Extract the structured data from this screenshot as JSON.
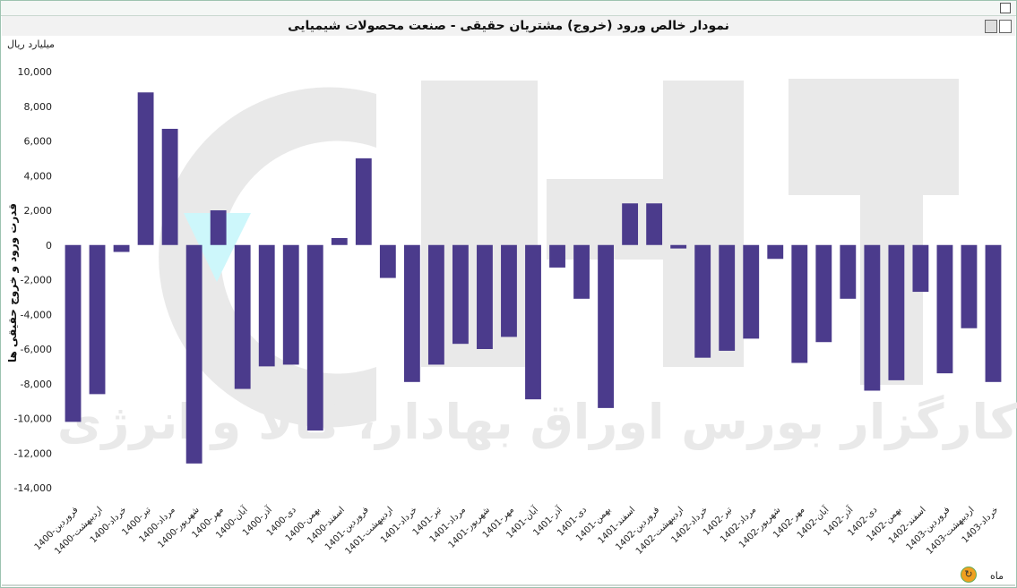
{
  "window": {
    "maximize_icon": "maximize-icon"
  },
  "toolbar": {
    "print_icon": "print-icon",
    "export_icon": "export-icon"
  },
  "footer": {
    "period_label": "ماه",
    "refresh_icon": "refresh-icon"
  },
  "watermark": {
    "text": "کارگزار بورس اوراق بهادار، کالا و انرژی"
  },
  "colors": {
    "bar": "#4b3b8c",
    "title_bg": "#f2f2f2",
    "watermark": "#e9e9e9",
    "highlight": "#cdf7fb"
  },
  "chart_data": {
    "type": "bar",
    "title": "نمودار خالص ورود (خروج) مشتریان حقیقی - صنعت محصولات شیمیایی",
    "unit_label": "میلیارد ریال",
    "ylabel": "قدرت ورود و خروج حقیقی ها",
    "xlabel": "",
    "ylim": [
      -14000,
      10000
    ],
    "yticks": [
      "10,000",
      "8,000",
      "6,000",
      "4,000",
      "2,000",
      "0",
      "-2,000",
      "-4,000",
      "-6,000",
      "-8,000",
      "-10,000",
      "-12,000",
      "-14,000"
    ],
    "ytick_values": [
      10000,
      8000,
      6000,
      4000,
      2000,
      0,
      -2000,
      -4000,
      -6000,
      -8000,
      -10000,
      -12000,
      -14000
    ],
    "grid": false,
    "categories": [
      "1400-فروردین",
      "1400-اردیبهشت",
      "1400-خرداد",
      "1400-تیر",
      "1400-مرداد",
      "1400-شهریور",
      "1400-مهر",
      "1400-آبان",
      "1400-آذر",
      "1400-دی",
      "1400-بهمن",
      "1400-اسفند",
      "1401-فروردین",
      "1401-اردیبهشت",
      "1401-خرداد",
      "1401-تیر",
      "1401-مرداد",
      "1401-شهریور",
      "1401-مهر",
      "1401-آبان",
      "1401-آذر",
      "1401-دی",
      "1401-بهمن",
      "1401-اسفند",
      "1402-فروردین",
      "1402-اردیبهشت",
      "1402-خرداد",
      "1402-تیر",
      "1402-مرداد",
      "1402-شهریور",
      "1402-مهر",
      "1402-آبان",
      "1402-آذر",
      "1402-دی",
      "1402-بهمن",
      "1402-اسفند",
      "1403-فروردین",
      "1403-اردیبهشت",
      "1403-خرداد"
    ],
    "series": [
      {
        "values": [
          -10200,
          -8600,
          -400,
          8800,
          6700,
          -12600,
          2000,
          -8300,
          -7000,
          -6900,
          -10700,
          400,
          5000,
          -1900,
          -7900,
          -6900,
          -5700,
          -6000,
          -5300,
          -8900,
          -1300,
          -3100,
          -9400,
          2400,
          2400,
          -200,
          -6500,
          -6100,
          -5400,
          -800,
          -6800,
          -5600,
          -3100,
          -8400,
          -7800,
          -2700,
          -7400,
          -4800,
          -7900
        ]
      }
    ]
  }
}
